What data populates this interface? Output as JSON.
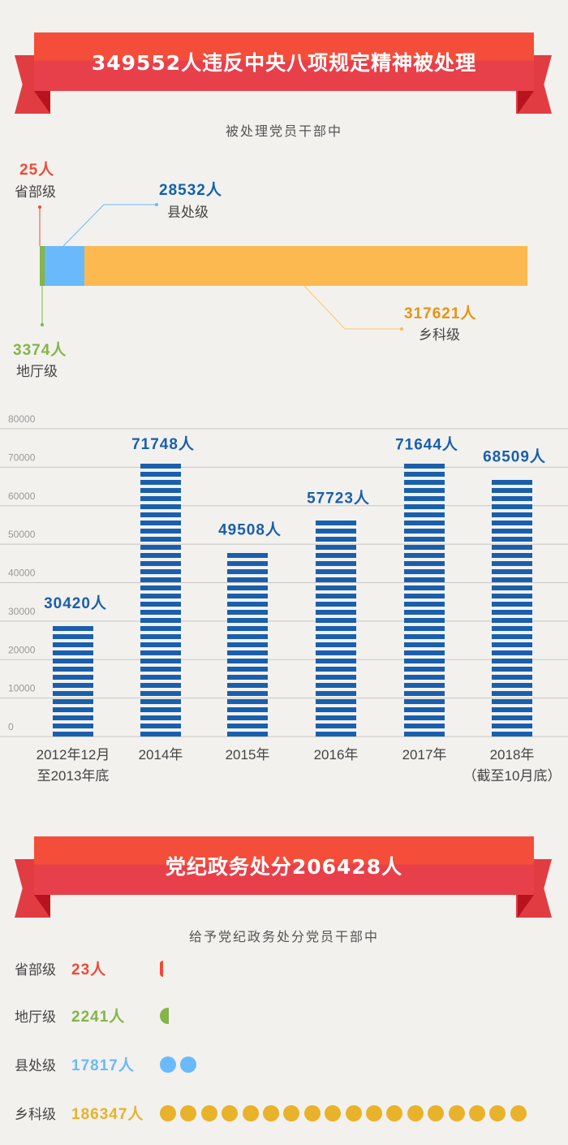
{
  "banner1": {
    "title": "349552人违反中央八项规定精神被处理"
  },
  "section1": {
    "subtitle": "被处理党员干部中",
    "segments": [
      {
        "level": "省部级",
        "value_label": "25人",
        "value": 25,
        "color": "#f04a37"
      },
      {
        "level": "地厅级",
        "value_label": "3374人",
        "value": 3374,
        "color": "#84b547"
      },
      {
        "level": "县处级",
        "value_label": "28532人",
        "value": 28532,
        "color": "#6ab9fb"
      },
      {
        "level": "乡科级",
        "value_label": "317621人",
        "value": 317621,
        "color": "#fbb94f"
      }
    ],
    "label_colors": {
      "red": "#f04a37",
      "green": "#84b547",
      "blue": "#1060b0",
      "orange": "#e7940f"
    }
  },
  "chart_data": {
    "type": "bar",
    "categories": [
      [
        "2012年12月",
        "至2013年底"
      ],
      [
        "2014年"
      ],
      [
        "2015年"
      ],
      [
        "2016年"
      ],
      [
        "2017年"
      ],
      [
        "2018年",
        "（截至10月底）"
      ]
    ],
    "values": [
      30420,
      71748,
      49508,
      57723,
      71644,
      68509
    ],
    "data_labels": [
      "30420人",
      "71748人",
      "49508人",
      "57723人",
      "71644人",
      "68509人"
    ],
    "ylim": [
      0,
      80000
    ],
    "yticks": [
      "0",
      "10000",
      "20000",
      "30000",
      "40000",
      "50000",
      "60000",
      "70000",
      "80000"
    ],
    "grid": true,
    "bar_color": "#1a5fad"
  },
  "banner2": {
    "title": "党纪政务处分206428人"
  },
  "section2": {
    "subtitle": "给予党纪政务处分党员干部中",
    "rows": [
      {
        "level": "省部级",
        "value_label": "23人",
        "color": "#f04a37",
        "dots": 0.2
      },
      {
        "level": "地厅级",
        "value_label": "2241人",
        "color": "#84b547",
        "dots": 0.55
      },
      {
        "level": "县处级",
        "value_label": "17817人",
        "color": "#6ab9fb",
        "dots": 2
      },
      {
        "level": "乡科级",
        "value_label": "186347人",
        "color": "#e8b22a",
        "dots": 18
      }
    ]
  }
}
